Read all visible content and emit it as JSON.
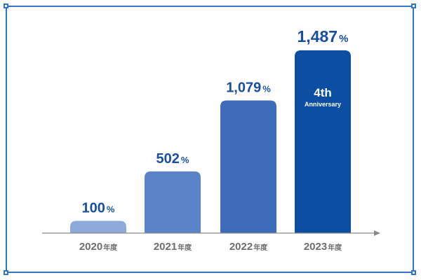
{
  "chart_data": {
    "type": "bar",
    "categories": [
      {
        "year": "2020",
        "suffix": "年度"
      },
      {
        "year": "2021",
        "suffix": "年度"
      },
      {
        "year": "2022",
        "suffix": "年度"
      },
      {
        "year": "2023",
        "suffix": "年度"
      }
    ],
    "values": [
      100,
      502,
      1079,
      1487
    ],
    "value_labels": [
      "100",
      "502",
      "1,079",
      "1,487"
    ],
    "value_unit": "%",
    "ylim": [
      0,
      1600
    ],
    "grid": false,
    "colors": [
      "#8eaadb",
      "#5b84c8",
      "#3d6cb8",
      "#0b4ea2"
    ],
    "label_color": "#1a4fa0",
    "axis_color": "#8a8a8a",
    "xlabel_color": "#6d6d6d",
    "annotation": {
      "bar_index": 3,
      "title": "4th",
      "subtitle": "Anniversary",
      "color": "#ffffff"
    }
  }
}
